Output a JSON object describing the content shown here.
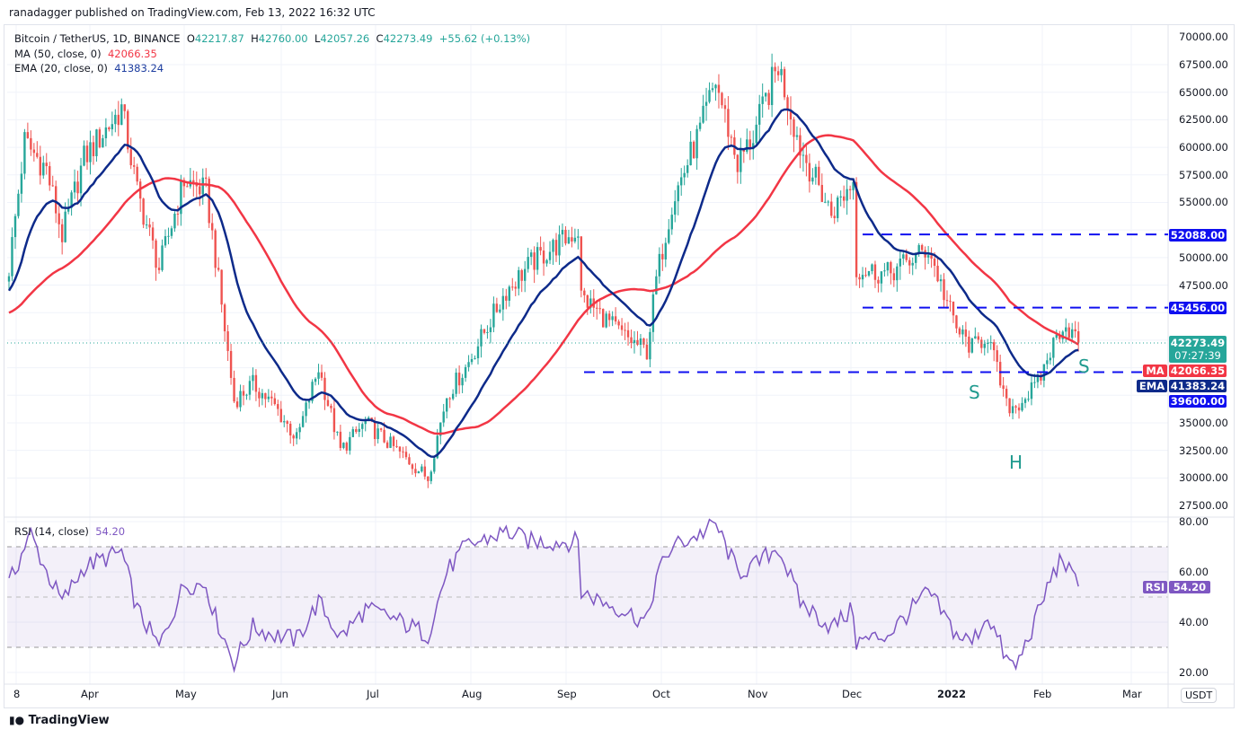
{
  "header": {
    "published": "ranadagger published on TradingView.com, Feb 13, 2022 16:32 UTC"
  },
  "legend": {
    "symbol": "Bitcoin / TetherUS, 1D, BINANCE",
    "o_label": "O",
    "o": "42217.87",
    "h_label": "H",
    "h": "42760.00",
    "l_label": "L",
    "l": "42057.26",
    "c_label": "C",
    "c": "42273.49",
    "change": "+55.62 (+0.13%)",
    "ma": "MA (50, close, 0)",
    "ma_value": "42066.35",
    "ema": "EMA (20, close, 0)",
    "ema_value": "41383.24",
    "rsi": "RSI (14, close)",
    "rsi_value": "54.20"
  },
  "axis": {
    "currency": "USDT",
    "price_ticks": [
      "70000.00",
      "67500.00",
      "65000.00",
      "62500.00",
      "60000.00",
      "57500.00",
      "55000.00",
      "50000.00",
      "47500.00",
      "35000.00",
      "32500.00",
      "30000.00",
      "27500.00"
    ],
    "rsi_ticks": [
      "80.00",
      "60.00",
      "40.00",
      "20.00"
    ],
    "time_labels": [
      "8",
      "Apr",
      "May",
      "Jun",
      "Jul",
      "Aug",
      "Sep",
      "Oct",
      "Nov",
      "Dec",
      "2022",
      "Feb",
      "Mar"
    ]
  },
  "markers": {
    "level1": "52088.00",
    "level2": "45456.00",
    "last": "42273.49",
    "countdown": "07:27:39",
    "ma_tag": "MA",
    "ma": "42066.35",
    "ema_tag": "EMA",
    "ema": "41383.24",
    "level3": "39600.00",
    "rsi_tag": "RSI",
    "rsi": "54.20"
  },
  "annotations": {
    "left_shoulder": "S",
    "head": "H",
    "right_shoulder": "S"
  },
  "footer": {
    "brand": "TradingView"
  },
  "colors": {
    "up": "#26a69a",
    "down": "#ef5350",
    "ma": "#f23645",
    "ema": "#0d2a8a",
    "levels": "#1010f0",
    "rsi": "#7e57c2"
  },
  "chart_data": {
    "type": "candlestick",
    "title": "Bitcoin / TetherUS, 1D, BINANCE",
    "ylim": [
      27000,
      70500
    ],
    "x_range": [
      "2021-03-08",
      "2022-03-15"
    ],
    "horizontal_levels": [
      52088,
      45456,
      39600
    ],
    "close_keypoints": [
      [
        "2021-03-08",
        49000
      ],
      [
        "2021-03-13",
        60500
      ],
      [
        "2021-03-20",
        58000
      ],
      [
        "2021-03-25",
        52000
      ],
      [
        "2021-04-01",
        59000
      ],
      [
        "2021-04-13",
        63500
      ],
      [
        "2021-04-18",
        56000
      ],
      [
        "2021-04-25",
        49000
      ],
      [
        "2021-05-03",
        57000
      ],
      [
        "2021-05-10",
        56000
      ],
      [
        "2021-05-13",
        50000
      ],
      [
        "2021-05-19",
        37000
      ],
      [
        "2021-05-25",
        38500
      ],
      [
        "2021-06-01",
        36500
      ],
      [
        "2021-06-08",
        33500
      ],
      [
        "2021-06-15",
        40000
      ],
      [
        "2021-06-22",
        32500
      ],
      [
        "2021-06-30",
        35000
      ],
      [
        "2021-07-08",
        33000
      ],
      [
        "2021-07-20",
        30000
      ],
      [
        "2021-07-26",
        37500
      ],
      [
        "2021-08-01",
        40000
      ],
      [
        "2021-08-14",
        47000
      ],
      [
        "2021-08-22",
        49500
      ],
      [
        "2021-09-06",
        52500
      ],
      [
        "2021-09-07",
        46500
      ],
      [
        "2021-09-20",
        43000
      ],
      [
        "2021-09-28",
        41500
      ],
      [
        "2021-10-01",
        48000
      ],
      [
        "2021-10-06",
        55000
      ],
      [
        "2021-10-15",
        61500
      ],
      [
        "2021-10-20",
        66000
      ],
      [
        "2021-10-27",
        58500
      ],
      [
        "2021-11-01",
        61000
      ],
      [
        "2021-11-09",
        67500
      ],
      [
        "2021-11-16",
        60000
      ],
      [
        "2021-11-26",
        54000
      ],
      [
        "2021-12-03",
        57000
      ],
      [
        "2021-12-04",
        49000
      ],
      [
        "2021-12-14",
        48500
      ],
      [
        "2021-12-27",
        50800
      ],
      [
        "2022-01-05",
        43500
      ],
      [
        "2022-01-10",
        41800
      ],
      [
        "2022-01-15",
        43000
      ],
      [
        "2022-01-21",
        36500
      ],
      [
        "2022-01-24",
        36500
      ],
      [
        "2022-01-31",
        38500
      ],
      [
        "2022-02-04",
        41500
      ],
      [
        "2022-02-08",
        44000
      ],
      [
        "2022-02-10",
        43500
      ],
      [
        "2022-02-13",
        42273.49
      ]
    ],
    "rsi_keypoints": [
      [
        "2021-03-08",
        55
      ],
      [
        "2021-03-13",
        70
      ],
      [
        "2021-03-15",
        75
      ],
      [
        "2021-03-20",
        60
      ],
      [
        "2021-03-25",
        48
      ],
      [
        "2021-04-01",
        62
      ],
      [
        "2021-04-13",
        68
      ],
      [
        "2021-04-18",
        45
      ],
      [
        "2021-04-25",
        30
      ],
      [
        "2021-05-03",
        55
      ],
      [
        "2021-05-10",
        55
      ],
      [
        "2021-05-13",
        42
      ],
      [
        "2021-05-19",
        24
      ],
      [
        "2021-05-25",
        38
      ],
      [
        "2021-06-01",
        35
      ],
      [
        "2021-06-08",
        33
      ],
      [
        "2021-06-15",
        48
      ],
      [
        "2021-06-22",
        34
      ],
      [
        "2021-06-30",
        45
      ],
      [
        "2021-07-08",
        42
      ],
      [
        "2021-07-20",
        35
      ],
      [
        "2021-07-26",
        60
      ],
      [
        "2021-08-01",
        70
      ],
      [
        "2021-08-14",
        76
      ],
      [
        "2021-08-22",
        72
      ],
      [
        "2021-09-06",
        72
      ],
      [
        "2021-09-07",
        52
      ],
      [
        "2021-09-20",
        45
      ],
      [
        "2021-09-28",
        40
      ],
      [
        "2021-10-01",
        58
      ],
      [
        "2021-10-06",
        70
      ],
      [
        "2021-10-15",
        75
      ],
      [
        "2021-10-20",
        79
      ],
      [
        "2021-10-27",
        60
      ],
      [
        "2021-11-01",
        62
      ],
      [
        "2021-11-09",
        70
      ],
      [
        "2021-11-16",
        48
      ],
      [
        "2021-11-26",
        38
      ],
      [
        "2021-12-03",
        45
      ],
      [
        "2021-12-04",
        32
      ],
      [
        "2021-12-14",
        35
      ],
      [
        "2021-12-27",
        52
      ],
      [
        "2022-01-05",
        35
      ],
      [
        "2022-01-10",
        32
      ],
      [
        "2022-01-15",
        43
      ],
      [
        "2022-01-21",
        25
      ],
      [
        "2022-01-24",
        22
      ],
      [
        "2022-01-31",
        43
      ],
      [
        "2022-02-04",
        57
      ],
      [
        "2022-02-08",
        66
      ],
      [
        "2022-02-10",
        60
      ],
      [
        "2022-02-13",
        54.2
      ]
    ],
    "rsi_bands": [
      70,
      50,
      30
    ]
  }
}
